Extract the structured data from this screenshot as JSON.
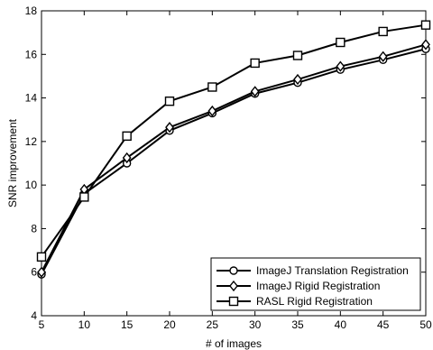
{
  "chart_data": {
    "type": "line",
    "title": "",
    "xlabel": "# of images",
    "ylabel": "SNR improvement",
    "x": [
      5,
      10,
      15,
      20,
      25,
      30,
      35,
      40,
      45,
      50
    ],
    "xlim": [
      5,
      50
    ],
    "ylim": [
      4,
      18
    ],
    "xticks": [
      5,
      10,
      15,
      20,
      25,
      30,
      35,
      40,
      45,
      50
    ],
    "yticks": [
      4,
      6,
      8,
      10,
      12,
      14,
      16,
      18
    ],
    "grid": false,
    "legend_position": "bottom-right",
    "series": [
      {
        "name": "ImageJ Translation Registration",
        "marker": "circle",
        "color": "#000000",
        "values": [
          5.9,
          9.6,
          11.0,
          12.5,
          13.3,
          14.2,
          14.7,
          15.3,
          15.75,
          16.25
        ]
      },
      {
        "name": "ImageJ Rigid Registration",
        "marker": "diamond",
        "color": "#000000",
        "values": [
          6.0,
          9.8,
          11.25,
          12.65,
          13.4,
          14.3,
          14.85,
          15.45,
          15.9,
          16.45
        ]
      },
      {
        "name": "RASL Rigid Registration",
        "marker": "square",
        "color": "#000000",
        "values": [
          6.7,
          9.45,
          12.25,
          13.85,
          14.5,
          15.6,
          15.95,
          16.55,
          17.05,
          17.35
        ]
      }
    ]
  }
}
